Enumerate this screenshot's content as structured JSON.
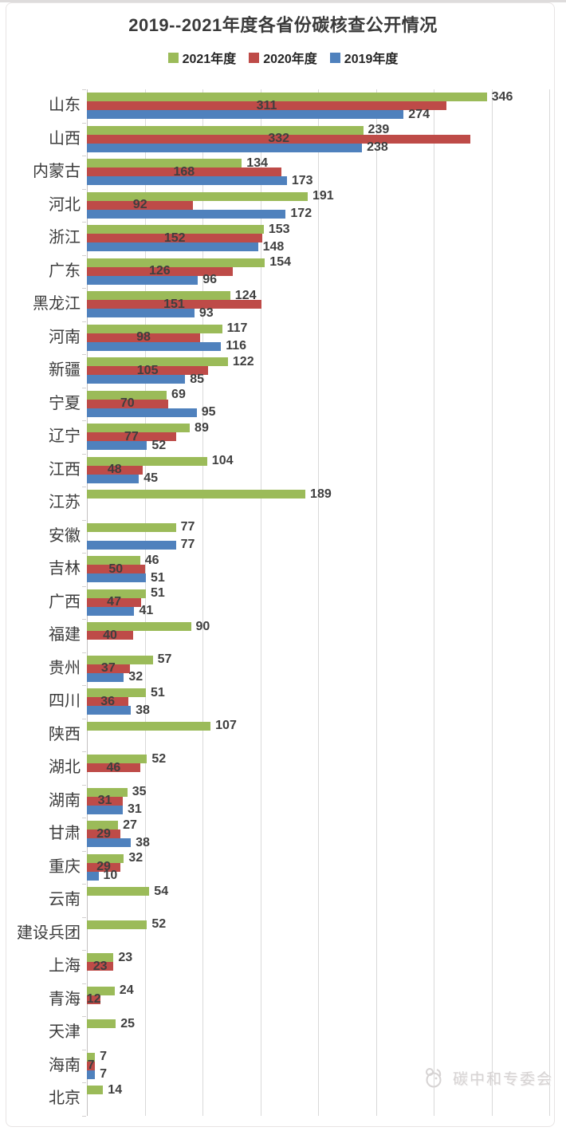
{
  "page": {
    "title": "2019--2021年度各省份碳核查公开情况",
    "watermark_text": "碳中和专委会"
  },
  "colors": {
    "green_2021": "#9bbb59",
    "red_2020": "#be4b48",
    "blue_2019": "#4f81bd",
    "gridline": "#d9d9d9",
    "value_label": "#3f3f3f"
  },
  "legend": [
    {
      "label": "2021年度",
      "color": "#9bbb59"
    },
    {
      "label": "2020年度",
      "color": "#be4b48"
    },
    {
      "label": "2019年度",
      "color": "#4f81bd"
    }
  ],
  "chart_data": {
    "type": "bar",
    "orientation": "horizontal",
    "title": "2019--2021年度各省份碳核查公开情况",
    "xlim": [
      0,
      400
    ],
    "grid_interval": 50,
    "grid": true,
    "legend_position": "top",
    "value_labels": true,
    "label_position_by_series": {
      "2021年度": "outside-end",
      "2020年度": "center",
      "2019年度": "outside-end"
    },
    "categories": [
      "山东",
      "山西",
      "内蒙古",
      "河北",
      "浙江",
      "广东",
      "黑龙江",
      "河南",
      "新疆",
      "宁夏",
      "辽宁",
      "江西",
      "江苏",
      "安徽",
      "吉林",
      "广西",
      "福建",
      "贵州",
      "四川",
      "陕西",
      "湖北",
      "湖南",
      "甘肃",
      "重庆",
      "云南",
      "建设兵团",
      "上海",
      "青海",
      "天津",
      "海南",
      "北京"
    ],
    "series": [
      {
        "name": "2021年度",
        "color": "#9bbb59",
        "values": [
          346,
          239,
          134,
          191,
          153,
          154,
          124,
          117,
          122,
          69,
          89,
          104,
          189,
          77,
          46,
          51,
          90,
          57,
          51,
          107,
          52,
          35,
          27,
          32,
          54,
          52,
          23,
          24,
          25,
          7,
          14
        ]
      },
      {
        "name": "2020年度",
        "color": "#be4b48",
        "values": [
          311,
          332,
          168,
          92,
          152,
          126,
          151,
          98,
          105,
          70,
          77,
          48,
          null,
          null,
          50,
          47,
          40,
          37,
          36,
          null,
          46,
          31,
          29,
          29,
          null,
          null,
          23,
          12,
          null,
          7,
          null
        ]
      },
      {
        "name": "2019年度",
        "color": "#4f81bd",
        "values": [
          274,
          238,
          173,
          172,
          148,
          96,
          93,
          116,
          85,
          95,
          52,
          45,
          null,
          77,
          51,
          41,
          null,
          32,
          38,
          null,
          null,
          31,
          38,
          10,
          null,
          null,
          null,
          null,
          null,
          7,
          null
        ]
      }
    ]
  }
}
